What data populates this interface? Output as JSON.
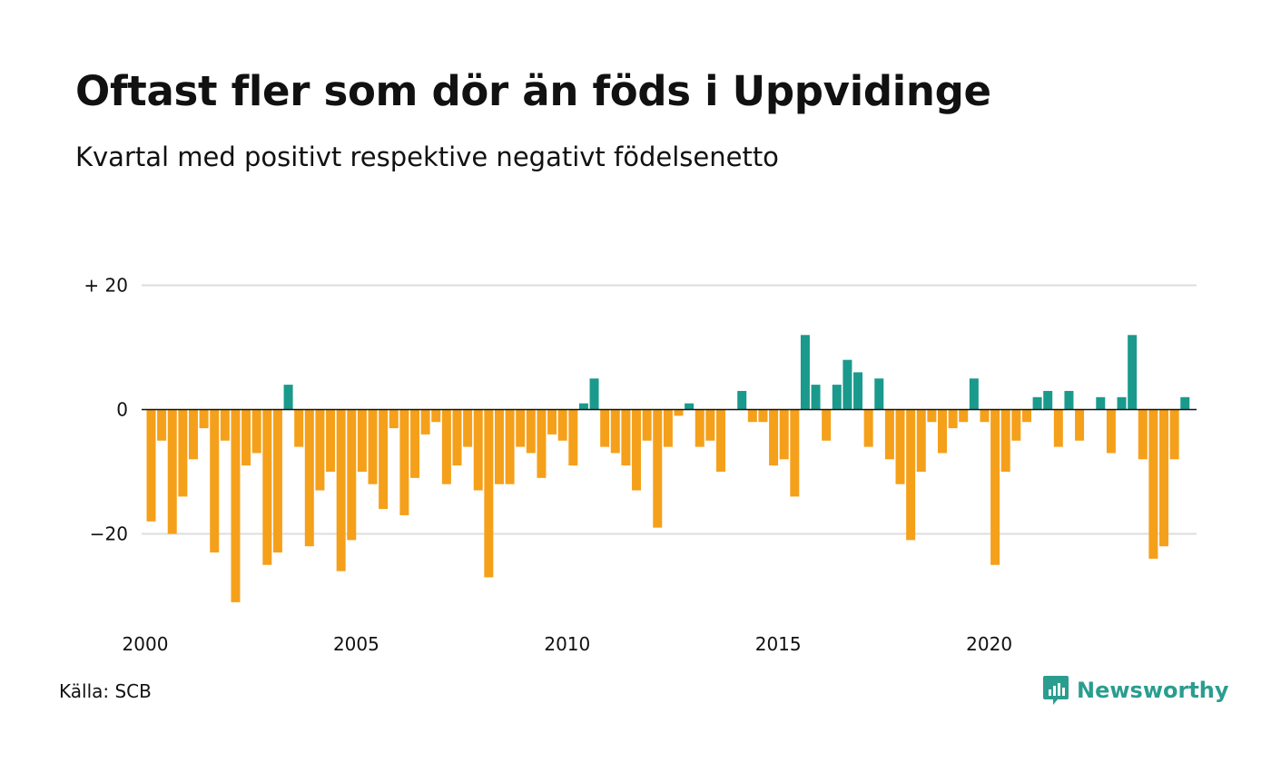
{
  "title": "Oftast fler som dör än föds i Uppvidinge",
  "subtitle": "Kvartal med positivt respektive negativt födelsenetto",
  "source": "Källa: SCB",
  "brand": {
    "name": "Newsworthy",
    "logo_icon": "chart-speech-bubble-icon"
  },
  "colors": {
    "positive": "#1a9a8c",
    "negative": "#f5a01a",
    "grid": "#dddddd",
    "zero_line": "#111111",
    "brand": "#2a9d8f"
  },
  "chart_data": {
    "type": "bar",
    "grid": true,
    "legend": "none",
    "ylim": [
      -32,
      20
    ],
    "y_ticks": [
      {
        "value": 20,
        "label": "+ 20"
      },
      {
        "value": 0,
        "label": "0"
      },
      {
        "value": -20,
        "label": "−20"
      }
    ],
    "x_ticks": [
      {
        "value": 2000,
        "label": "2000"
      },
      {
        "value": 2005,
        "label": "2005"
      },
      {
        "value": 2010,
        "label": "2010"
      },
      {
        "value": 2015,
        "label": "2015"
      },
      {
        "value": 2020,
        "label": "2020"
      }
    ],
    "start_year": 2000,
    "values": [
      -18,
      -5,
      -20,
      -14,
      -8,
      -3,
      -23,
      -5,
      -31,
      -9,
      -7,
      -25,
      -23,
      4,
      -6,
      -22,
      -13,
      -10,
      -26,
      -21,
      -10,
      -12,
      -16,
      -3,
      -17,
      -11,
      -4,
      -2,
      -12,
      -9,
      -6,
      -13,
      -27,
      -12,
      -12,
      -6,
      -7,
      -11,
      -4,
      -5,
      -9,
      1,
      5,
      -6,
      -7,
      -9,
      -13,
      -5,
      -19,
      -6,
      -1,
      1,
      -6,
      -5,
      -10,
      0,
      3,
      -2,
      -2,
      -9,
      -8,
      -14,
      12,
      4,
      -5,
      4,
      8,
      6,
      -6,
      5,
      -8,
      -12,
      -21,
      -10,
      -2,
      -7,
      -3,
      -2,
      5,
      -2,
      -25,
      -10,
      -5,
      -2,
      2,
      3,
      -6,
      3,
      -5,
      0,
      2,
      -7,
      2,
      12,
      -8,
      -24,
      -22,
      -8,
      2
    ]
  }
}
